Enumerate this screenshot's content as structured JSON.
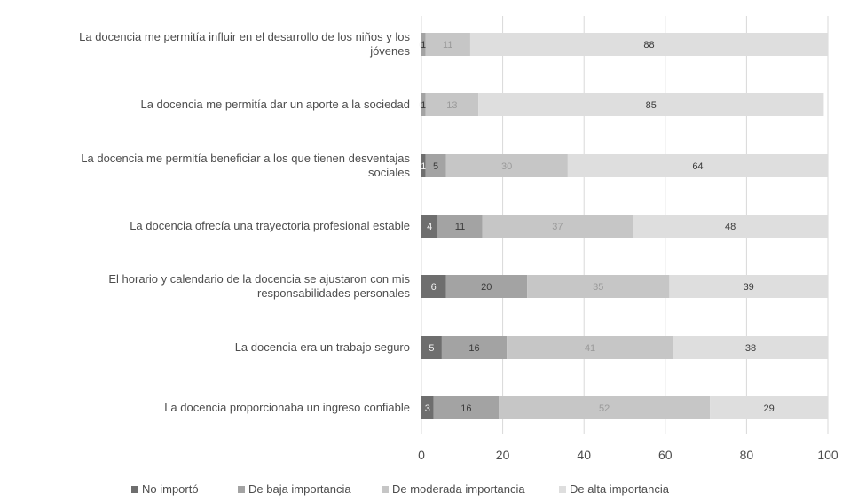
{
  "chart_data": {
    "type": "bar",
    "orientation": "horizontal",
    "stacked": true,
    "categories": [
      "La docencia me permitía influir en el desarrollo de los niños y los jóvenes",
      "La docencia me permitía dar un aporte a la sociedad",
      "La docencia me permitía beneficiar a los que tienen desventajas sociales",
      "La docencia ofrecía una trayectoria profesional estable",
      "El horario y calendario de la docencia se ajustaron con mis responsabilidades personales",
      "La docencia era un trabajo seguro",
      "La docencia proporcionaba un ingreso confiable"
    ],
    "category_lines": [
      [
        "La docencia me permitía influir en el desarrollo de los niños y los",
        "jóvenes"
      ],
      [
        "La docencia me permitía dar un aporte a la sociedad"
      ],
      [
        "La docencia me permitía beneficiar a los que tienen desventajas",
        "sociales"
      ],
      [
        "La docencia ofrecía una trayectoria profesional estable"
      ],
      [
        "El horario y calendario de la docencia se ajustaron con mis",
        "responsabilidades personales"
      ],
      [
        "La docencia era un trabajo seguro"
      ],
      [
        "La docencia proporcionaba un ingreso confiable"
      ]
    ],
    "series": [
      {
        "name": "No importó",
        "color": "#6e6e6e",
        "label_color": "#f2f2f2",
        "values": [
          0,
          0,
          1,
          4,
          6,
          5,
          3
        ],
        "labels": [
          "0",
          "0",
          "1",
          "4",
          "6",
          "5",
          "3"
        ]
      },
      {
        "name": "De baja importancia",
        "color": "#a3a3a3",
        "label_color": "#3a3a3a",
        "values": [
          1,
          1,
          5,
          11,
          20,
          16,
          16
        ],
        "labels": [
          "1",
          "1",
          "5",
          "11",
          "20",
          "16",
          "16"
        ]
      },
      {
        "name": "De moderada importancia",
        "color": "#c6c6c6",
        "label_color": "#9a9a9a",
        "values": [
          11,
          13,
          30,
          37,
          35,
          41,
          52
        ],
        "labels": [
          "11",
          "13",
          "30",
          "37",
          "35",
          "41",
          "52"
        ]
      },
      {
        "name": "De alta importancia",
        "color": "#dedede",
        "label_color": "#3a3a3a",
        "values": [
          88,
          85,
          64,
          48,
          39,
          38,
          29
        ],
        "labels": [
          "88",
          "85",
          "64",
          "48",
          "39",
          "38",
          "29"
        ]
      }
    ],
    "x_ticks": [
      "0",
      "20",
      "40",
      "60",
      "80",
      "100"
    ],
    "xlim": [
      0,
      100
    ],
    "grid": true,
    "legend_position": "bottom",
    "title": "",
    "xlabel": "",
    "ylabel": ""
  }
}
